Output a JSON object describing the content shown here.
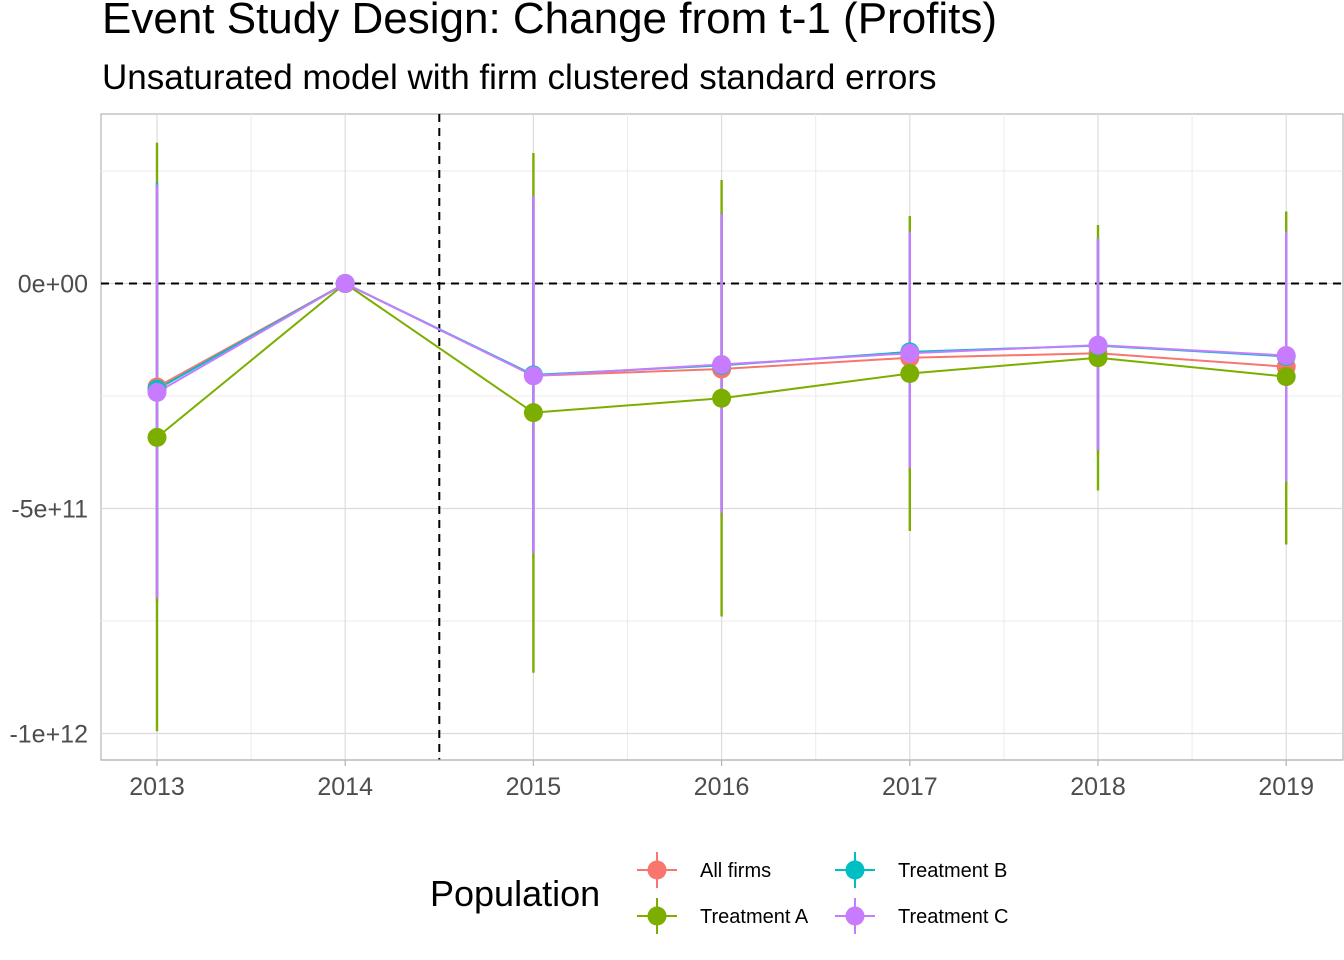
{
  "chart_data": {
    "type": "line",
    "title": "Event Study Design: Change from t-1 (Profits)",
    "subtitle": "Unsaturated model with firm clustered standard errors",
    "xlabel": "",
    "ylabel": "",
    "categories": [
      "2013",
      "2014",
      "2015",
      "2016",
      "2017",
      "2018",
      "2019"
    ],
    "ylim": [
      -1060000000000.0,
      380000000000.0
    ],
    "y_ticks": [
      0,
      -500000000000,
      -1000000000000
    ],
    "y_tick_labels": [
      "0e+00",
      "-5e+11",
      "-1e+12"
    ],
    "reference_lines": {
      "horizontal_y": 0,
      "vertical_x_between": [
        "2014",
        "2015"
      ]
    },
    "grid": true,
    "legend": {
      "title": "Population",
      "position": "bottom"
    },
    "series": [
      {
        "name": "All firms",
        "color": "#F8766D",
        "values": [
          -230000000000.0,
          0,
          -205000000000.0,
          -190000000000.0,
          -165000000000.0,
          -155000000000.0,
          -185000000000.0
        ],
        "lower": [
          -710000000000.0,
          0,
          -610000000000.0,
          -520000000000.0,
          -420000000000.0,
          -380000000000.0,
          -450000000000.0
        ],
        "upper": [
          220000000000.0,
          0,
          200000000000.0,
          160000000000.0,
          120000000000.0,
          100000000000.0,
          120000000000.0
        ]
      },
      {
        "name": "Treatment A",
        "color": "#7CAE00",
        "values": [
          -342000000000.0,
          0,
          -287000000000.0,
          -255000000000.0,
          -200000000000.0,
          -165000000000.0,
          -207000000000.0
        ],
        "lower": [
          -995000000000.0,
          0,
          -865000000000.0,
          -740000000000.0,
          -550000000000.0,
          -460000000000.0,
          -580000000000.0
        ],
        "upper": [
          313000000000.0,
          0,
          290000000000.0,
          230000000000.0,
          150000000000.0,
          130000000000.0,
          160000000000.0
        ]
      },
      {
        "name": "Treatment B",
        "color": "#00BFC4",
        "values": [
          -235000000000.0,
          0,
          -203000000000.0,
          -182000000000.0,
          -152000000000.0,
          -138000000000.0,
          -162000000000.0
        ],
        "lower": [
          -700000000000.0,
          0,
          -600000000000.0,
          -510000000000.0,
          -410000000000.0,
          -370000000000.0,
          -440000000000.0
        ],
        "upper": [
          225000000000.0,
          0,
          195000000000.0,
          155000000000.0,
          115000000000.0,
          100000000000.0,
          115000000000.0
        ]
      },
      {
        "name": "Treatment C",
        "color": "#C77CFF",
        "values": [
          -242000000000.0,
          0,
          -205000000000.0,
          -180000000000.0,
          -155000000000.0,
          -137000000000.0,
          -160000000000.0
        ],
        "lower": [
          -700000000000.0,
          0,
          -600000000000.0,
          -510000000000.0,
          -410000000000.0,
          -370000000000.0,
          -440000000000.0
        ],
        "upper": [
          220000000000.0,
          0,
          195000000000.0,
          155000000000.0,
          115000000000.0,
          100000000000.0,
          115000000000.0
        ]
      }
    ]
  }
}
